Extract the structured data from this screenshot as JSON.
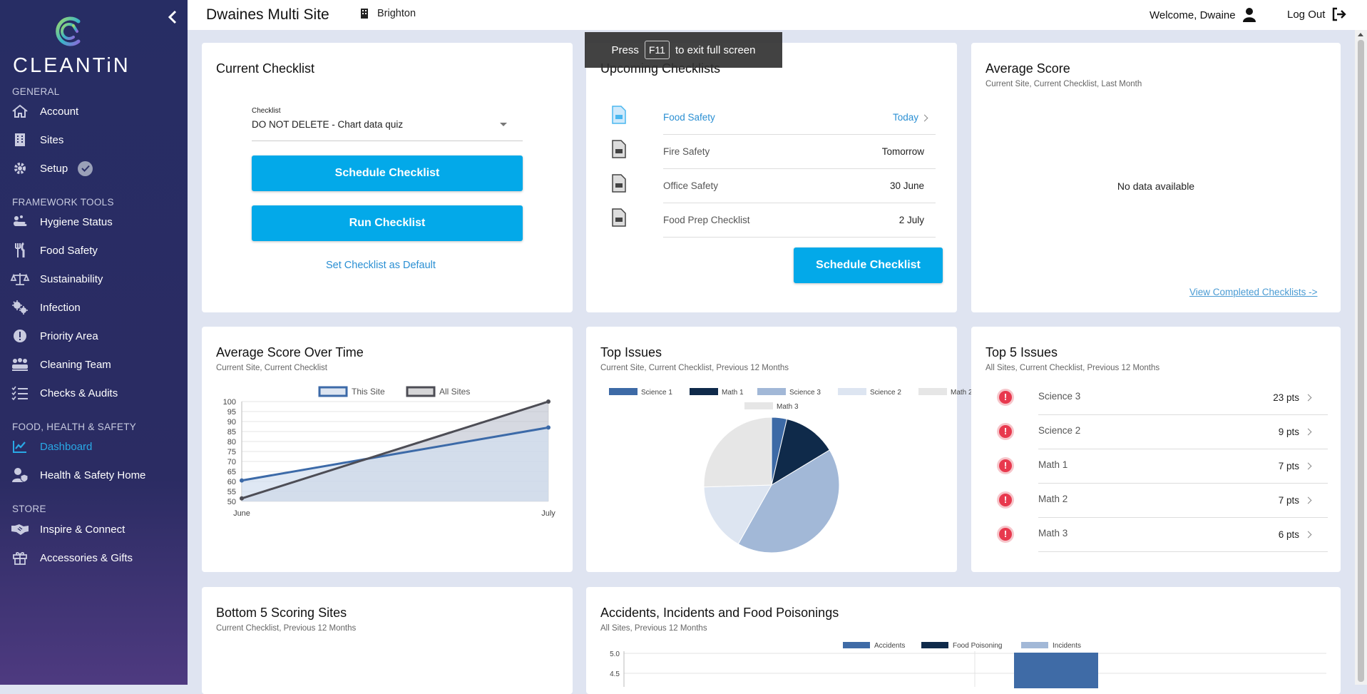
{
  "brand": {
    "name": "CLEANTiN"
  },
  "sidebar": {
    "sections": {
      "general": "GENERAL",
      "framework": "FRAMEWORK TOOLS",
      "food_health": "FOOD, HEALTH & SAFETY",
      "store": "STORE"
    },
    "items": [
      {
        "label": "Account",
        "icon": "home-icon"
      },
      {
        "label": "Sites",
        "icon": "building-icon"
      },
      {
        "label": "Setup",
        "icon": "gear-icon"
      },
      {
        "label": "Hygiene Status",
        "icon": "hand-wash-icon"
      },
      {
        "label": "Food Safety",
        "icon": "utensils-icon"
      },
      {
        "label": "Sustainability",
        "icon": "scales-icon"
      },
      {
        "label": "Infection",
        "icon": "virus-icon"
      },
      {
        "label": "Priority Area",
        "icon": "alert-circle-icon"
      },
      {
        "label": "Cleaning Team",
        "icon": "team-icon"
      },
      {
        "label": "Checks & Audits",
        "icon": "checklist-icon"
      },
      {
        "label": "Dashboard",
        "icon": "chart-line-icon"
      },
      {
        "label": "Health & Safety Home",
        "icon": "user-shield-icon"
      },
      {
        "label": "Inspire & Connect",
        "icon": "handshake-icon"
      },
      {
        "label": "Accessories & Gifts",
        "icon": "gift-icon"
      }
    ],
    "active": "Dashboard"
  },
  "topbar": {
    "site_title": "Dwaines Multi Site",
    "location": "Brighton",
    "welcome": "Welcome, Dwaine",
    "logout": "Log Out"
  },
  "toast": {
    "pre": "Press",
    "key": "F11",
    "post": "to exit full screen"
  },
  "current_checklist": {
    "title": "Current Checklist",
    "select_label": "Checklist",
    "select_value": "DO NOT DELETE - Chart data quiz",
    "schedule_btn": "Schedule Checklist",
    "run_btn": "Run Checklist",
    "default_link": "Set Checklist as Default"
  },
  "upcoming": {
    "title": "Upcoming Checklists",
    "items": [
      {
        "name": "Food Safety",
        "when": "Today"
      },
      {
        "name": "Fire Safety",
        "when": "Tomorrow"
      },
      {
        "name": "Office Safety",
        "when": "30 June"
      },
      {
        "name": "Food Prep Checklist",
        "when": "2 July"
      }
    ],
    "schedule_btn": "Schedule Checklist"
  },
  "average_score": {
    "title": "Average Score",
    "subtitle": "Current Site, Current Checklist, Last Month",
    "empty": "No data available",
    "link": "View Completed Checklists ->"
  },
  "avg_over_time": {
    "title": "Average Score Over Time",
    "subtitle": "Current Site, Current Checklist"
  },
  "top_issues": {
    "title": "Top Issues",
    "subtitle": "Current Site, Current Checklist, Previous 12 Months"
  },
  "top5": {
    "title": "Top 5 Issues",
    "subtitle": "All Sites, Current Checklist, Previous 12 Months",
    "items": [
      {
        "name": "Science 3",
        "pts": "23 pts"
      },
      {
        "name": "Science 2",
        "pts": "9 pts"
      },
      {
        "name": "Math 1",
        "pts": "7 pts"
      },
      {
        "name": "Math 2",
        "pts": "7 pts"
      },
      {
        "name": "Math 3",
        "pts": "6 pts"
      }
    ]
  },
  "bottom5": {
    "title": "Bottom 5 Scoring Sites",
    "subtitle": "Current Checklist, Previous 12 Months"
  },
  "accidents": {
    "title": "Accidents, Incidents and Food Poisonings",
    "subtitle": "All Sites, Previous 12 Months"
  },
  "chart_data": [
    {
      "type": "line",
      "x": [
        "June",
        "July"
      ],
      "series": [
        {
          "name": "This Site",
          "values": [
            60.5,
            87
          ],
          "color": "#3c6aa8"
        },
        {
          "name": "All Sites",
          "values": [
            51.5,
            100
          ],
          "color": "#4d4d55"
        }
      ],
      "yticks": [
        50,
        55,
        60,
        65,
        70,
        75,
        80,
        85,
        90,
        95,
        100
      ],
      "ylim": [
        50,
        100
      ],
      "legend": "top"
    },
    {
      "type": "pie",
      "slices": [
        {
          "name": "Science 1",
          "value": 2,
          "color": "#3d6aa6"
        },
        {
          "name": "Math 1",
          "value": 7,
          "color": "#0f2a4a"
        },
        {
          "name": "Science 3",
          "value": 23,
          "color": "#a2b8d7"
        },
        {
          "name": "Science 2",
          "value": 9,
          "color": "#dde5f1"
        },
        {
          "name": "Math 2",
          "value": 0,
          "color": "#e6e6e6"
        },
        {
          "name": "Math 3",
          "value": 14,
          "color": "#e6e6e6"
        }
      ],
      "legend": "top"
    },
    {
      "type": "bar",
      "series": [
        {
          "name": "Accidents",
          "color": "#3f6ba6"
        },
        {
          "name": "Food Poisoning",
          "color": "#0f2a4a"
        },
        {
          "name": "Incidents",
          "color": "#a2b8d7"
        }
      ],
      "yticks": [
        "5.0",
        "4.5"
      ],
      "legend": "top"
    }
  ]
}
